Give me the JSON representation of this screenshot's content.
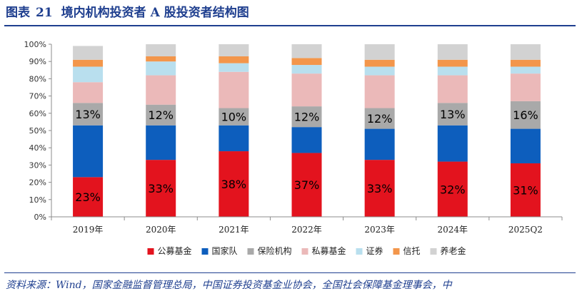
{
  "title": {
    "prefix": "图表",
    "number": "21",
    "text": "境内机构投资者 A 股投资者结构图"
  },
  "source": "资料来源：Wind，国家金融监督管理总局，中国证券投资基金业协会，全国社会保障基金理事会，中",
  "chart_data": {
    "type": "bar",
    "stacked": true,
    "percent": true,
    "categories": [
      "2019年",
      "2020年",
      "2021年",
      "2022年",
      "2023年",
      "2024年",
      "2025Q2"
    ],
    "series": [
      {
        "name": "公募基金",
        "color": "#e3131e",
        "values": [
          23,
          33,
          38,
          37,
          33,
          32,
          31
        ]
      },
      {
        "name": "国家队",
        "color": "#0d5ebd",
        "values": [
          30,
          20,
          15,
          15,
          18,
          21,
          20
        ]
      },
      {
        "name": "保险机构",
        "color": "#a9a9a9",
        "values": [
          13,
          12,
          10,
          12,
          12,
          13,
          16
        ]
      },
      {
        "name": "私募基金",
        "color": "#ebb9b9",
        "values": [
          12,
          17,
          21,
          19,
          19,
          16,
          16
        ]
      },
      {
        "name": "证券",
        "color": "#b9dfee",
        "values": [
          9,
          8,
          5,
          5,
          5,
          5,
          4
        ]
      },
      {
        "name": "信托",
        "color": "#f3964b",
        "values": [
          4,
          3,
          4,
          4,
          4,
          4,
          4
        ]
      },
      {
        "name": "养老金",
        "color": "#d2d2d2",
        "values": [
          8,
          7,
          7,
          8,
          9,
          9,
          9
        ]
      }
    ],
    "data_labels": [
      {
        "series": "公募基金",
        "labels": [
          "23%",
          "33%",
          "38%",
          "37%",
          "33%",
          "32%",
          "31%"
        ]
      },
      {
        "series": "保险机构",
        "labels": [
          "13%",
          "12%",
          "10%",
          "12%",
          "12%",
          "13%",
          "16%"
        ]
      }
    ],
    "y_ticks": [
      "0%",
      "10%",
      "20%",
      "30%",
      "40%",
      "50%",
      "60%",
      "70%",
      "80%",
      "90%",
      "100%"
    ],
    "ylim": [
      0,
      100
    ],
    "legend": "bottom",
    "grid": false
  }
}
